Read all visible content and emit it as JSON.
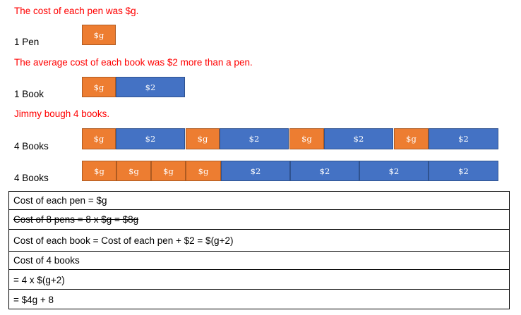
{
  "statements": {
    "pen": "The cost of each pen was $g.",
    "book": "The average cost of each book was $2 more than a pen.",
    "books": "Jimmy bough 4 books."
  },
  "labels": {
    "one_pen": "1 Pen",
    "one_book": "1 Book",
    "four_books_a": "4 Books",
    "four_books_b": "4 Books"
  },
  "tiles": {
    "g": "$g",
    "two": "$2"
  },
  "colors": {
    "g_tile": "#ed7d31",
    "two_tile": "#4472c4",
    "statement_text": "#ff0000"
  },
  "working": [
    "Cost of each pen = $g",
    "Cost of 8 pens = 8 x $g = $8g",
    "Cost of each book = Cost of each pen + $2 = $(g+2)",
    "Cost of 4 books",
    "= 4 x $(g+2)",
    "= $4g + 8"
  ]
}
